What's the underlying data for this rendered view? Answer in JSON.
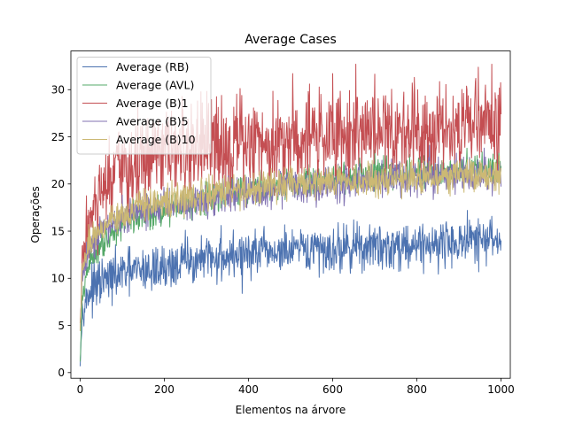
{
  "chart_data": {
    "type": "line",
    "title": "Average Cases",
    "xlabel": "Elementos na árvore",
    "ylabel": "Operações",
    "xlim": [
      -22,
      1022
    ],
    "ylim": [
      -0.6,
      34.1
    ],
    "xticks": [
      0,
      200,
      400,
      600,
      800,
      1000
    ],
    "yticks": [
      0,
      5,
      10,
      15,
      20,
      25,
      30
    ],
    "grid": false,
    "legend_position": "top-left",
    "x_range": [
      0,
      1000
    ],
    "series": [
      {
        "name": "Average (RB)",
        "color": "#4c72b0",
        "anchors": [
          [
            0,
            1
          ],
          [
            5,
            6.5
          ],
          [
            20,
            8.5
          ],
          [
            50,
            9.5
          ],
          [
            100,
            10.5
          ],
          [
            200,
            11.2
          ],
          [
            300,
            12
          ],
          [
            400,
            12.6
          ],
          [
            500,
            12.8
          ],
          [
            600,
            13.1
          ],
          [
            700,
            13.3
          ],
          [
            800,
            13.6
          ],
          [
            900,
            13.8
          ],
          [
            1000,
            14.1
          ]
        ],
        "noise": 1.2,
        "peaks": [
          [
            920,
            17.2
          ],
          [
            650,
            16.2
          ],
          [
            335,
            15.6
          ],
          [
            250,
            15.1
          ],
          [
            385,
            8.4
          ],
          [
            170,
            8.7
          ]
        ]
      },
      {
        "name": "Average (AVL)",
        "color": "#55a868",
        "anchors": [
          [
            0,
            1
          ],
          [
            5,
            7.5
          ],
          [
            20,
            11.5
          ],
          [
            50,
            13.8
          ],
          [
            100,
            15.8
          ],
          [
            200,
            17.4
          ],
          [
            300,
            18.6
          ],
          [
            400,
            19.3
          ],
          [
            500,
            20
          ],
          [
            600,
            20.6
          ],
          [
            700,
            21
          ],
          [
            800,
            21.3
          ],
          [
            900,
            21.6
          ],
          [
            1000,
            21.8
          ]
        ],
        "noise": 0.8,
        "peaks": [
          [
            700,
            23.6
          ],
          [
            995,
            23.3
          ]
        ]
      },
      {
        "name": "Average (B)1",
        "color": "#c44e52",
        "anchors": [
          [
            0,
            5
          ],
          [
            5,
            11
          ],
          [
            15,
            15
          ],
          [
            50,
            18.5
          ],
          [
            100,
            21.5
          ],
          [
            200,
            23
          ],
          [
            300,
            23.8
          ],
          [
            400,
            24.3
          ],
          [
            500,
            24.8
          ],
          [
            600,
            25.2
          ],
          [
            700,
            25.6
          ],
          [
            800,
            26
          ],
          [
            900,
            26.3
          ],
          [
            1000,
            26.5
          ]
        ],
        "noise": 2.5,
        "peaks": [
          [
            655,
            32.7
          ],
          [
            600,
            31.7
          ],
          [
            940,
            31.2
          ],
          [
            505,
            31.7
          ],
          [
            290,
            28.6
          ],
          [
            105,
            24.6
          ],
          [
            25,
            17.5
          ]
        ]
      },
      {
        "name": "Average (B)5",
        "color": "#8172b2",
        "anchors": [
          [
            0,
            4.5
          ],
          [
            5,
            10
          ],
          [
            20,
            13.5
          ],
          [
            50,
            15
          ],
          [
            100,
            16.5
          ],
          [
            200,
            17.7
          ],
          [
            300,
            18.4
          ],
          [
            400,
            19
          ],
          [
            500,
            19.5
          ],
          [
            600,
            19.9
          ],
          [
            700,
            20.3
          ],
          [
            800,
            20.6
          ],
          [
            900,
            20.9
          ],
          [
            1000,
            21
          ]
        ],
        "noise": 0.9,
        "peaks": [
          [
            830,
            24.1
          ],
          [
            960,
            23.8
          ]
        ]
      },
      {
        "name": "Average (B)10",
        "color": "#ccb974",
        "anchors": [
          [
            0,
            4.5
          ],
          [
            5,
            10.5
          ],
          [
            20,
            13.8
          ],
          [
            50,
            15.5
          ],
          [
            100,
            17
          ],
          [
            200,
            18.1
          ],
          [
            300,
            18.9
          ],
          [
            400,
            19.5
          ],
          [
            500,
            19.9
          ],
          [
            600,
            20.2
          ],
          [
            700,
            20.4
          ],
          [
            800,
            20.7
          ],
          [
            900,
            20.9
          ],
          [
            1000,
            21
          ]
        ],
        "noise": 0.85,
        "peaks": []
      }
    ]
  }
}
